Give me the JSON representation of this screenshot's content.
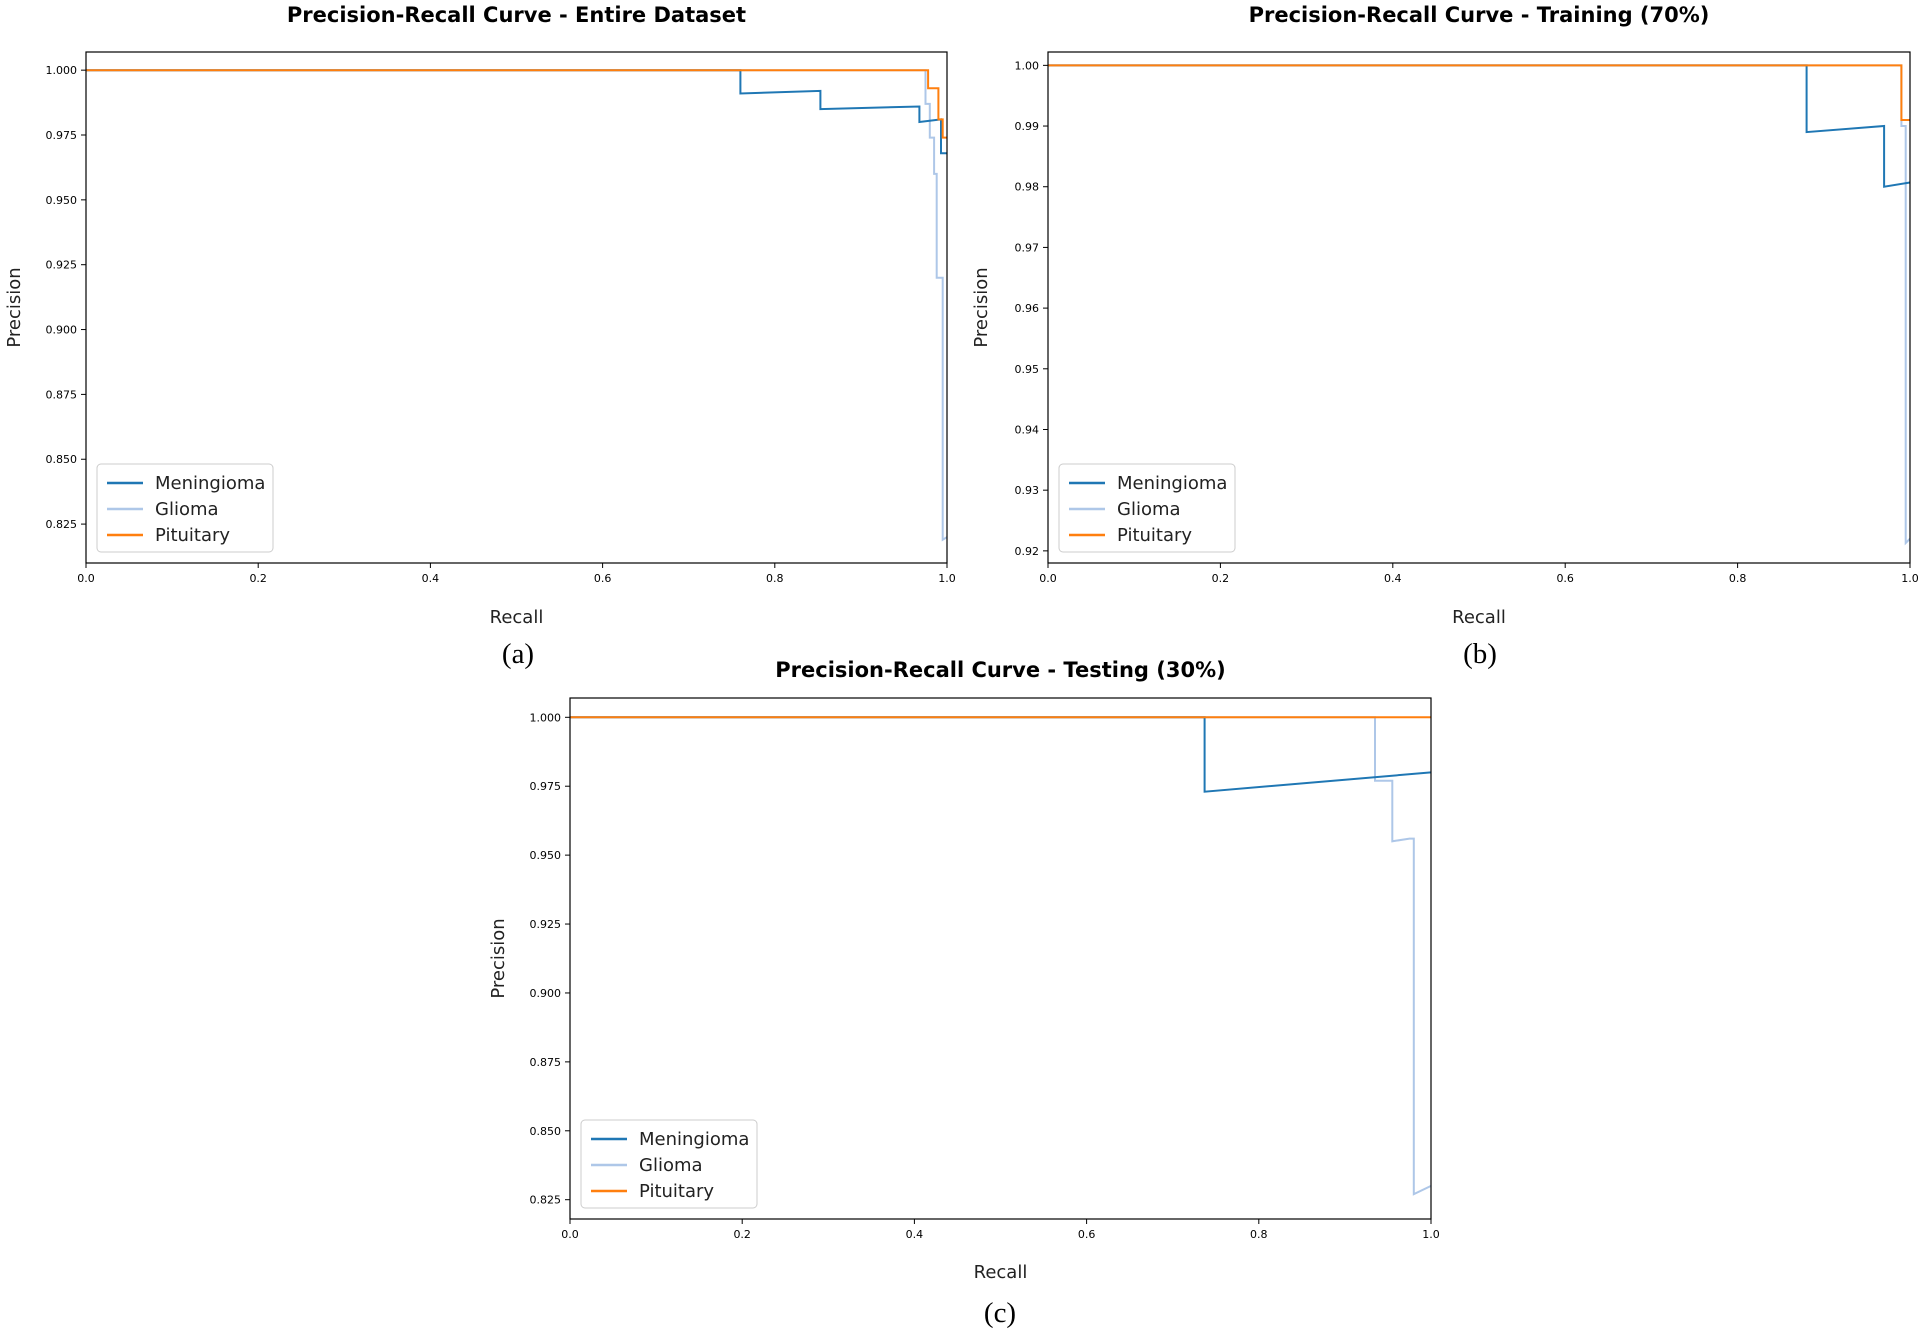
{
  "figure": {
    "captions": [
      "(a)",
      "(b)",
      "(c)"
    ]
  },
  "colors": {
    "meningioma": "#1f77b4",
    "glioma": "#aec7e8",
    "pituitary": "#ff7f0e"
  },
  "chart_data": [
    {
      "type": "line",
      "title": "Precision-Recall Curve - Entire Dataset",
      "xlabel": "Recall",
      "ylabel": "Precision",
      "xlim": [
        0.0,
        1.0
      ],
      "ylim": [
        0.81,
        1.007
      ],
      "xticks": [
        0.0,
        0.2,
        0.4,
        0.6,
        0.8,
        1.0
      ],
      "xtick_labels": [
        "0.0",
        "0.2",
        "0.4",
        "0.6",
        "0.8",
        "1.0"
      ],
      "yticks": [
        0.825,
        0.85,
        0.875,
        0.9,
        0.925,
        0.95,
        0.975,
        1.0
      ],
      "ytick_labels": [
        "0.825",
        "0.850",
        "0.875",
        "0.900",
        "0.925",
        "0.950",
        "0.975",
        "1.000"
      ],
      "legend_position": "lower-left",
      "series": [
        {
          "name": "Meningioma",
          "color_key": "meningioma",
          "x": [
            0.0,
            0.76,
            0.76,
            0.853,
            0.853,
            0.968,
            0.968,
            0.993,
            0.993,
            1.0
          ],
          "y": [
            1.0,
            1.0,
            0.991,
            0.992,
            0.985,
            0.986,
            0.98,
            0.981,
            0.968,
            0.968
          ]
        },
        {
          "name": "Glioma",
          "color_key": "glioma",
          "x": [
            0.0,
            0.975,
            0.975,
            0.98,
            0.98,
            0.985,
            0.985,
            0.988,
            0.988,
            0.995,
            0.995,
            1.0
          ],
          "y": [
            1.0,
            1.0,
            0.987,
            0.987,
            0.974,
            0.974,
            0.96,
            0.96,
            0.92,
            0.92,
            0.819,
            0.82
          ]
        },
        {
          "name": "Pituitary",
          "color_key": "pituitary",
          "x": [
            0.0,
            0.978,
            0.978,
            0.99,
            0.99,
            0.995,
            0.995,
            1.0
          ],
          "y": [
            1.0,
            1.0,
            0.993,
            0.993,
            0.981,
            0.981,
            0.974,
            0.974
          ]
        }
      ]
    },
    {
      "type": "line",
      "title": "Precision-Recall Curve - Training (70%)",
      "xlabel": "Recall",
      "ylabel": "Precision",
      "xlim": [
        0.0,
        1.0
      ],
      "ylim": [
        0.918,
        1.0022
      ],
      "xticks": [
        0.0,
        0.2,
        0.4,
        0.6,
        0.8,
        1.0
      ],
      "xtick_labels": [
        "0.0",
        "0.2",
        "0.4",
        "0.6",
        "0.8",
        "1.0"
      ],
      "yticks": [
        0.92,
        0.93,
        0.94,
        0.95,
        0.96,
        0.97,
        0.98,
        0.99,
        1.0
      ],
      "ytick_labels": [
        "0.92",
        "0.93",
        "0.94",
        "0.95",
        "0.96",
        "0.97",
        "0.98",
        "0.99",
        "1.00"
      ],
      "legend_position": "lower-left",
      "series": [
        {
          "name": "Meningioma",
          "color_key": "meningioma",
          "x": [
            0.0,
            0.88,
            0.88,
            0.97,
            0.97,
            1.0
          ],
          "y": [
            1.0,
            1.0,
            0.989,
            0.99,
            0.98,
            0.9807
          ]
        },
        {
          "name": "Glioma",
          "color_key": "glioma",
          "x": [
            0.0,
            0.99,
            0.99,
            0.995,
            0.995,
            1.0
          ],
          "y": [
            1.0,
            1.0,
            0.99,
            0.99,
            0.9213,
            0.922
          ]
        },
        {
          "name": "Pituitary",
          "color_key": "pituitary",
          "x": [
            0.0,
            0.99,
            0.99,
            1.0
          ],
          "y": [
            1.0,
            1.0,
            0.991,
            0.991
          ]
        }
      ]
    },
    {
      "type": "line",
      "title": "Precision-Recall Curve - Testing (30%)",
      "xlabel": "Recall",
      "ylabel": "Precision",
      "xlim": [
        0.0,
        1.0
      ],
      "ylim": [
        0.818,
        1.007
      ],
      "xticks": [
        0.0,
        0.2,
        0.4,
        0.6,
        0.8,
        1.0
      ],
      "xtick_labels": [
        "0.0",
        "0.2",
        "0.4",
        "0.6",
        "0.8",
        "1.0"
      ],
      "yticks": [
        0.825,
        0.85,
        0.875,
        0.9,
        0.925,
        0.95,
        0.975,
        1.0
      ],
      "ytick_labels": [
        "0.825",
        "0.850",
        "0.875",
        "0.900",
        "0.925",
        "0.950",
        "0.975",
        "1.000"
      ],
      "legend_position": "lower-left",
      "series": [
        {
          "name": "Meningioma",
          "color_key": "meningioma",
          "x": [
            0.0,
            0.737,
            0.737,
            1.0
          ],
          "y": [
            1.0,
            1.0,
            0.973,
            0.98
          ]
        },
        {
          "name": "Glioma",
          "color_key": "glioma",
          "x": [
            0.0,
            0.935,
            0.935,
            0.955,
            0.955,
            0.975,
            0.975,
            0.98,
            0.98,
            1.0
          ],
          "y": [
            1.0,
            1.0,
            0.977,
            0.977,
            0.955,
            0.956,
            0.956,
            0.956,
            0.827,
            0.83
          ]
        },
        {
          "name": "Pituitary",
          "color_key": "pituitary",
          "x": [
            0.0,
            1.0
          ],
          "y": [
            1.0,
            1.0
          ]
        }
      ]
    }
  ]
}
